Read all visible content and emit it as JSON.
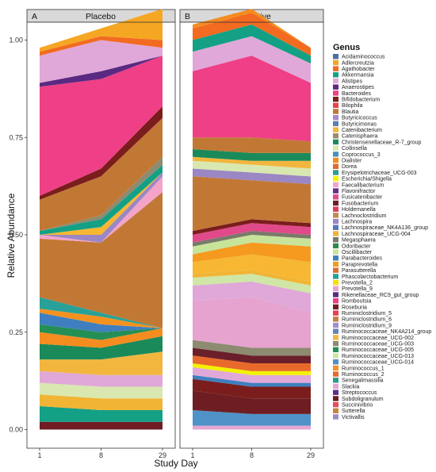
{
  "chart_data": {
    "type": "area",
    "ylabel": "Relative Abundance",
    "xlabel": "Study Day",
    "x": [
      1,
      8,
      29
    ],
    "y_ticks": [
      "0.00",
      "0.25",
      "0.50",
      "0.75",
      "1.00"
    ],
    "ylim": [
      0,
      1
    ],
    "legend_title": "Genus",
    "legend_position": "right",
    "panels": [
      {
        "tag": "A",
        "title": "Placebo",
        "layers": [
          {
            "genus": "Subdoligranulum",
            "values": [
              0.02,
              0.02,
              0.02
            ]
          },
          {
            "genus": "Akkermansia",
            "values": [
              0.04,
              0.03,
              0.03
            ]
          },
          {
            "genus": "Lachnospiraceae_UCG-004",
            "values": [
              0.03,
              0.03,
              0.03
            ]
          },
          {
            "genus": "Collinsella",
            "values": [
              0.03,
              0.03,
              0.03
            ]
          },
          {
            "genus": "Alistipes",
            "values": [
              0.03,
              0.03,
              0.03
            ]
          },
          {
            "genus": "Ruminococcaceae_UCG-002",
            "values": [
              0.03,
              0.04,
              0.06
            ]
          },
          {
            "genus": "Christensenellaceae_R-7_group",
            "values": [
              0.04,
              0.03,
              0.04
            ]
          },
          {
            "genus": "Dialister",
            "values": [
              0.03,
              0.02,
              0.02
            ]
          },
          {
            "genus": "Ruminococcaceae_UCG-005",
            "values": [
              0.02,
              0.02,
              0.0
            ]
          },
          {
            "genus": "Parabacteroides",
            "values": [
              0.03,
              0.02,
              0.0
            ]
          },
          {
            "genus": "Ruminococcus_1",
            "values": [
              0.01,
              0.02,
              0.0
            ]
          },
          {
            "genus": "Phascolarctobacterium",
            "values": [
              0.03,
              0.01,
              0.0
            ]
          },
          {
            "genus": "Blautia",
            "values": [
              0.15,
              0.18,
              0.35
            ]
          },
          {
            "genus": "Faecalibacterium",
            "values": [
              0.01,
              0.0,
              0.04
            ]
          },
          {
            "genus": "Lachnospira",
            "values": [
              0.0,
              0.02,
              0.01
            ]
          },
          {
            "genus": "Catenibacterium",
            "values": [
              0.0,
              0.02,
              0.0
            ]
          },
          {
            "genus": "Akkermansia",
            "values": [
              0.01,
              0.02,
              0.02
            ]
          },
          {
            "genus": "Ruminococcaceae_UCG-003",
            "values": [
              0.0,
              0.01,
              0.02
            ]
          },
          {
            "genus": "Blautia",
            "values": [
              0.08,
              0.1,
              0.1
            ]
          },
          {
            "genus": "Bifidobacterium",
            "values": [
              0.01,
              0.02,
              0.03
            ]
          },
          {
            "genus": "Bacteroides",
            "values": [
              0.28,
              0.23,
              0.13
            ]
          },
          {
            "genus": "Anaerostipes",
            "values": [
              0.01,
              0.02,
              0.0
            ]
          },
          {
            "genus": "Alistipes",
            "values": [
              0.07,
              0.08,
              0.02
            ]
          },
          {
            "genus": "Agathobacter",
            "values": [
              0.01,
              0.01,
              0.02
            ]
          },
          {
            "genus": "Adlercreutzia",
            "values": [
              0.01,
              0.02,
              0.08
            ]
          }
        ]
      },
      {
        "tag": "B",
        "title": "ShigActive",
        "layers": [
          {
            "genus": "Slackia",
            "values": [
              0.01,
              0.01,
              0.01
            ]
          },
          {
            "genus": "Ruminococcaceae_UCG-014",
            "values": [
              0.04,
              0.03,
              0.03
            ]
          },
          {
            "genus": "Roseburia",
            "values": [
              0.05,
              0.04,
              0.04
            ]
          },
          {
            "genus": "Bifidobacterium",
            "values": [
              0.03,
              0.03,
              0.03
            ]
          },
          {
            "genus": "Parabacteroides",
            "values": [
              0.01,
              0.01,
              0.01
            ]
          },
          {
            "genus": "Alistipes",
            "values": [
              0.02,
              0.02,
              0.02
            ]
          },
          {
            "genus": "Escherichia/Shigella",
            "values": [
              0.01,
              0.01,
              0.01
            ]
          },
          {
            "genus": "Ruminococcus_2",
            "values": [
              0.02,
              0.02,
              0.02
            ]
          },
          {
            "genus": "Fusobacterium",
            "values": [
              0.02,
              0.02,
              0.02
            ]
          },
          {
            "genus": "Ruminococcaceae_UCG-003",
            "values": [
              0.02,
              0.02,
              0.02
            ]
          },
          {
            "genus": "Prevotella_9",
            "values": [
              0.1,
              0.13,
              0.09
            ]
          },
          {
            "genus": "Alistipes",
            "values": [
              0.04,
              0.04,
              0.05
            ]
          },
          {
            "genus": "Ruminococcaceae_UCG-013",
            "values": [
              0.02,
              0.02,
              0.02
            ]
          },
          {
            "genus": "Lachnospiraceae_UCG-004",
            "values": [
              0.01,
              0.01,
              0.01
            ]
          },
          {
            "genus": "Catenibacterium",
            "values": [
              0.03,
              0.04,
              0.05
            ]
          },
          {
            "genus": "Paraprevotella",
            "values": [
              0.02,
              0.03,
              0.04
            ]
          },
          {
            "genus": "Oscillibacter",
            "values": [
              0.02,
              0.02,
              0.02
            ]
          },
          {
            "genus": "Megasphaera",
            "values": [
              0.01,
              0.01,
              0.01
            ]
          },
          {
            "genus": "Fusicatenibacter",
            "values": [
              0.02,
              0.02,
              0.02
            ]
          },
          {
            "genus": "Bifidobacterium",
            "values": [
              0.01,
              0.01,
              0.01
            ]
          },
          {
            "genus": "Blautia",
            "values": [
              0.14,
              0.1,
              0.1
            ]
          },
          {
            "genus": "Lachnospira",
            "values": [
              0.02,
              0.02,
              0.02
            ]
          },
          {
            "genus": "Collinsella",
            "values": [
              0.02,
              0.02,
              0.02
            ]
          },
          {
            "genus": "Ruminococcaceae_UCG-002",
            "values": [
              0.01,
              0.01,
              0.02
            ]
          },
          {
            "genus": "Christensenellaceae_R-7_group",
            "values": [
              0.02,
              0.02,
              0.02
            ]
          },
          {
            "genus": "Blautia",
            "values": [
              0.03,
              0.04,
              0.03
            ]
          },
          {
            "genus": "Bacteroides",
            "values": [
              0.17,
              0.21,
              0.15
            ]
          },
          {
            "genus": "Alistipes",
            "values": [
              0.05,
              0.05,
              0.05
            ]
          },
          {
            "genus": "Akkermansia",
            "values": [
              0.03,
              0.03,
              0.02
            ]
          },
          {
            "genus": "Agathobacter",
            "values": [
              0.03,
              0.03,
              0.02
            ]
          },
          {
            "genus": "Dialister",
            "values": [
              0.01,
              0.01,
              0.0
            ]
          }
        ]
      }
    ],
    "legend": [
      {
        "label": "Acidaminococcus",
        "color": "#4a6fa5"
      },
      {
        "label": "Adlercreutzia",
        "color": "#f5a623"
      },
      {
        "label": "Agathobacter",
        "color": "#f26b21"
      },
      {
        "label": "Akkermansia",
        "color": "#13a085"
      },
      {
        "label": "Alistipes",
        "color": "#e0a8d8"
      },
      {
        "label": "Anaerostipes",
        "color": "#5a2a82"
      },
      {
        "label": "Bacteroides",
        "color": "#ef3f86"
      },
      {
        "label": "Bifidobacterium",
        "color": "#7b1d1d"
      },
      {
        "label": "Bilophila",
        "color": "#e8434b"
      },
      {
        "label": "Blautia",
        "color": "#c27835"
      },
      {
        "label": "Butyricicoccus",
        "color": "#a78bc9"
      },
      {
        "label": "Butyricimonas",
        "color": "#5d7fb0"
      },
      {
        "label": "Catenibacterium",
        "color": "#f7b733"
      },
      {
        "label": "Catenisphaera",
        "color": "#9a8a6a"
      },
      {
        "label": "Christensenellaceae_R-7_group",
        "color": "#1b8a5a"
      },
      {
        "label": "Collinsella",
        "color": "#d9e8b0"
      },
      {
        "label": "Coprococcus_3",
        "color": "#4a90c2"
      },
      {
        "label": "Dialister",
        "color": "#f58c1f"
      },
      {
        "label": "Dorea",
        "color": "#e26a2c"
      },
      {
        "label": "Erysipelotrichaceae_UCG-003",
        "color": "#2f9e8f"
      },
      {
        "label": "Escherichia/Shigella",
        "color": "#f2f200"
      },
      {
        "label": "Faecalibacterium",
        "color": "#f4a3c9"
      },
      {
        "label": "Flavonifractor",
        "color": "#6a2e8a"
      },
      {
        "label": "Fusicatenibacter",
        "color": "#e14a8a"
      },
      {
        "label": "Fusobacterium",
        "color": "#6b1f2a"
      },
      {
        "label": "Holdemanella",
        "color": "#e23b5a"
      },
      {
        "label": "Lachnoclostridium",
        "color": "#c58a4b"
      },
      {
        "label": "Lachnospira",
        "color": "#9b87c4"
      },
      {
        "label": "Lachnospiraceae_NK4A136_group",
        "color": "#5a78b5"
      },
      {
        "label": "Lachnospiraceae_UCG-004",
        "color": "#f1b434"
      },
      {
        "label": "Megasphaera",
        "color": "#7a7a6a"
      },
      {
        "label": "Odoribacter",
        "color": "#2f8a4a"
      },
      {
        "label": "Oscillibacter",
        "color": "#c7e49a"
      },
      {
        "label": "Parabacteroides",
        "color": "#3f7fbf"
      },
      {
        "label": "Paraprevotella",
        "color": "#f59a1f"
      },
      {
        "label": "Parasutterella",
        "color": "#e36d2e"
      },
      {
        "label": "Phascolarctobacterium",
        "color": "#2aa198"
      },
      {
        "label": "Prevotella_2",
        "color": "#f7e000"
      },
      {
        "label": "Prevotella_9",
        "color": "#e6a3d0"
      },
      {
        "label": "Rikenellaceae_RC9_gut_group",
        "color": "#5b2c83"
      },
      {
        "label": "Romboutsia",
        "color": "#f03c84"
      },
      {
        "label": "Roseburia",
        "color": "#6e1e22"
      },
      {
        "label": "Ruminiclostridium_5",
        "color": "#e8404f"
      },
      {
        "label": "Ruminiclostridium_6",
        "color": "#c68040"
      },
      {
        "label": "Ruminiclostridium_9",
        "color": "#a190cc"
      },
      {
        "label": "Ruminococcaceae_NK4A214_group",
        "color": "#6683b8"
      },
      {
        "label": "Ruminococcaceae_UCG-002",
        "color": "#f2b63e"
      },
      {
        "label": "Ruminococcaceae_UCG-003",
        "color": "#8d8b70"
      },
      {
        "label": "Ruminococcaceae_UCG-005",
        "color": "#248f55"
      },
      {
        "label": "Ruminococcaceae_UCG-013",
        "color": "#cfe6a6"
      },
      {
        "label": "Ruminococcaceae_UCG-014",
        "color": "#4f92c8"
      },
      {
        "label": "Ruminococcus_1",
        "color": "#f5921f"
      },
      {
        "label": "Ruminococcus_2",
        "color": "#e86a2a"
      },
      {
        "label": "Senegalimassilia",
        "color": "#2c9c8c"
      },
      {
        "label": "Slackia",
        "color": "#e5a6d3"
      },
      {
        "label": "Streptococcus",
        "color": "#5e2e86"
      },
      {
        "label": "Subdoligranulum",
        "color": "#6f1c24"
      },
      {
        "label": "Succinivibrio",
        "color": "#ea4a5c"
      },
      {
        "label": "Sutterella",
        "color": "#c7843e"
      },
      {
        "label": "Victivallis",
        "color": "#9e8ac8"
      }
    ]
  }
}
